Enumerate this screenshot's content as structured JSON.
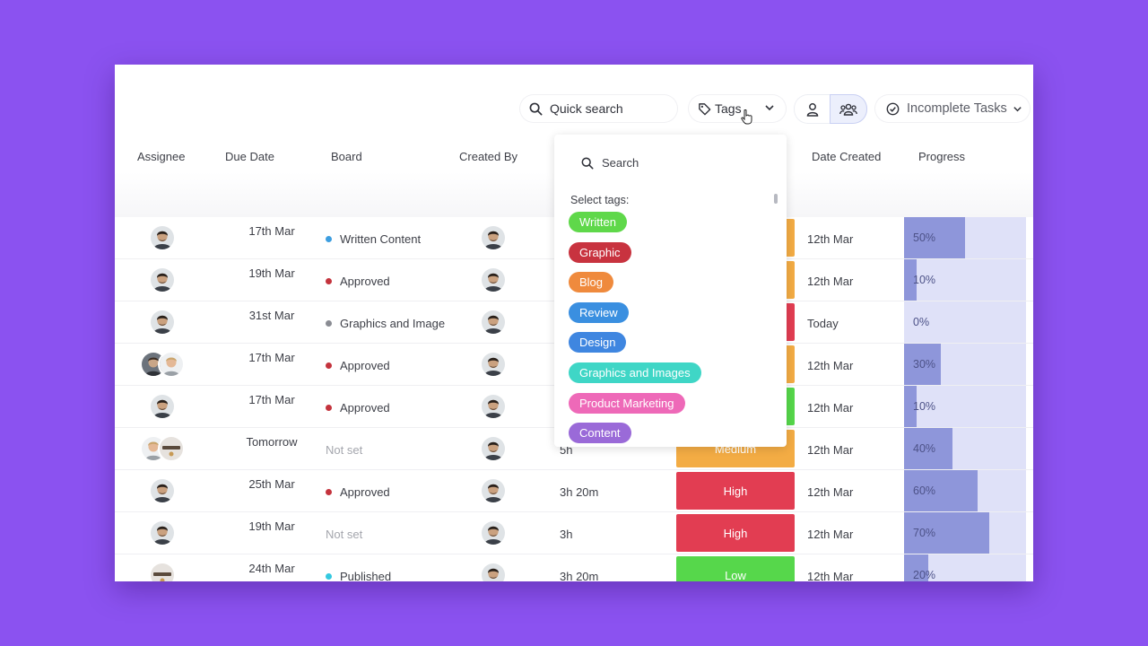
{
  "colors": {
    "background": "#8b52f0",
    "high": "#e23d52",
    "medium": "#f3ac44",
    "low": "#56d74b",
    "progress_track": "#dfe1f8",
    "progress_fill": "#8e96da"
  },
  "toolbar": {
    "search_placeholder": "Quick search",
    "tags_label": "Tags",
    "filter_label": "Incomplete Tasks",
    "icons": [
      "search-icon",
      "tag-icon",
      "chevron-down-icon",
      "person-icon",
      "team-icon",
      "check-circle-icon"
    ]
  },
  "columns": {
    "assignee": "Assignee",
    "due_date": "Due Date",
    "board": "Board",
    "created_by": "Created By",
    "date_created": "Date Created",
    "progress": "Progress"
  },
  "rows": [
    {
      "due": "17th Mar",
      "board": "Written Content",
      "board_color": "#3d9ee0",
      "estimate": "",
      "priority": "",
      "priority_color": "#f3ac44",
      "date_created": "12th Mar",
      "progress": "50%",
      "progress_value": 50
    },
    {
      "due": "19th Mar",
      "board": "Approved",
      "board_color": "#c4333d",
      "estimate": "",
      "priority": "",
      "priority_color": "#f3ac44",
      "date_created": "12th Mar",
      "progress": "10%",
      "progress_value": 10
    },
    {
      "due": "31st Mar",
      "board": "Graphics and Image",
      "board_color": "#8a8c93",
      "estimate": "",
      "priority": "",
      "priority_color": "#e23d52",
      "date_created": "Today",
      "progress": "0%",
      "progress_value": 0
    },
    {
      "due": "17th Mar",
      "board": "Approved",
      "board_color": "#c4333d",
      "estimate": "",
      "priority": "",
      "priority_color": "#f3ac44",
      "date_created": "12th Mar",
      "progress": "30%",
      "progress_value": 30
    },
    {
      "due": "17th Mar",
      "board": "Approved",
      "board_color": "#c4333d",
      "estimate": "",
      "priority": "",
      "priority_color": "#56d74b",
      "date_created": "12th Mar",
      "progress": "10%",
      "progress_value": 10
    },
    {
      "due": "Tomorrow",
      "board": "Not set",
      "board_color": "",
      "estimate": "5h",
      "priority": "Medium",
      "priority_color": "#f3ac44",
      "date_created": "12th Mar",
      "progress": "40%",
      "progress_value": 40
    },
    {
      "due": "25th Mar",
      "board": "Approved",
      "board_color": "#c4333d",
      "estimate": "3h 20m",
      "priority": "High",
      "priority_color": "#e23d52",
      "date_created": "12th Mar",
      "progress": "60%",
      "progress_value": 60
    },
    {
      "due": "19th Mar",
      "board": "Not set",
      "board_color": "",
      "estimate": "3h",
      "priority": "High",
      "priority_color": "#e23d52",
      "date_created": "12th Mar",
      "progress": "70%",
      "progress_value": 70
    },
    {
      "due": "24th Mar",
      "board": "Published",
      "board_color": "#34c9e0",
      "estimate": "3h 20m",
      "priority": "Low",
      "priority_color": "#56d74b",
      "date_created": "12th Mar",
      "progress": "20%",
      "progress_value": 20
    }
  ],
  "tags_dropdown": {
    "search_placeholder": "Search",
    "label": "Select tags:",
    "tags": [
      {
        "name": "Written",
        "color": "#5fd84a"
      },
      {
        "name": "Graphic",
        "color": "#c8333f"
      },
      {
        "name": "Blog",
        "color": "#ef8a3d"
      },
      {
        "name": "Review",
        "color": "#3a8fe0"
      },
      {
        "name": "Design",
        "color": "#3f86e0"
      },
      {
        "name": "Graphics and Images",
        "color": "#3fd6c6"
      },
      {
        "name": "Product Marketing",
        "color": "#ee69b8"
      },
      {
        "name": "Content",
        "color": "#9a6ad8"
      }
    ]
  }
}
